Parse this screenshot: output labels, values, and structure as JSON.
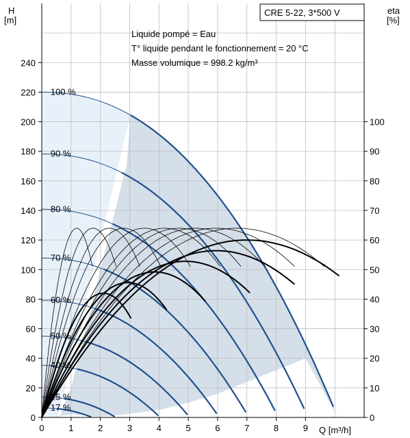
{
  "chart_data": {
    "type": "line",
    "title_box": "CRE 5-22, 3*500 V",
    "notes": [
      "Liquide pompé = Eau",
      "T° liquide pendant le fonctionnement = 20 °C",
      "Masse volumique = 998.2 kg/m³"
    ],
    "y_left_label": [
      "H",
      "[m]"
    ],
    "y_right_label": [
      "eta",
      "[%]"
    ],
    "x_label": "Q [m³/h]",
    "xlim": [
      0,
      11
    ],
    "ylim_left": [
      0,
      280
    ],
    "ylim_right": [
      0,
      140
    ],
    "x_ticks": [
      "0",
      "1",
      "2",
      "3",
      "4",
      "5",
      "6",
      "7",
      "8",
      "9"
    ],
    "y_left_ticks": [
      "0",
      "20",
      "40",
      "60",
      "80",
      "100",
      "120",
      "140",
      "160",
      "180",
      "200",
      "220",
      "240"
    ],
    "y_right_ticks": [
      "0",
      "10",
      "20",
      "30",
      "40",
      "50",
      "60",
      "70",
      "80",
      "90",
      "100"
    ],
    "speed_labels": [
      "100 %",
      "90 %",
      "80 %",
      "70 %",
      "60 %",
      "50 %",
      "40 %",
      "25 %",
      "17 %"
    ],
    "head_curves": [
      {
        "speed": 1.0,
        "label_index": 0,
        "h0": 220,
        "qmax": 10.1
      },
      {
        "speed": 0.9,
        "label_index": 1,
        "h0": 178.2,
        "qmax": 9.09
      },
      {
        "speed": 0.8,
        "label_index": 2,
        "h0": 140.8,
        "qmax": 8.08
      },
      {
        "speed": 0.7,
        "label_index": 3,
        "h0": 107.8,
        "qmax": 7.07
      },
      {
        "speed": 0.6,
        "label_index": 4,
        "h0": 79.2,
        "qmax": 6.06
      },
      {
        "speed": 0.5,
        "label_index": 5,
        "h0": 55,
        "qmax": 5.05
      },
      {
        "speed": 0.4,
        "label_index": 6,
        "h0": 35.2,
        "qmax": 4.04
      },
      {
        "speed": 0.25,
        "label_index": 7,
        "h0": 13.75,
        "qmax": 2.53
      },
      {
        "speed": 0.17,
        "label_index": 8,
        "h0": 6.4,
        "qmax": 1.72
      }
    ],
    "efficiency": {
      "peak": 60,
      "best_q": 7.0,
      "thin_curve_speeds": [
        0.17,
        0.25,
        0.33,
        0.4,
        0.5,
        0.6,
        0.67,
        0.75,
        0.85,
        0.95
      ]
    },
    "operating_region": {
      "q_min_fraction": 0.3,
      "head_line_switch_fraction": 0.3
    }
  },
  "colors": {
    "head_curve": "#1e4f8c",
    "region_fill": "#d5dfe9",
    "left_fill": "#e8f1fa",
    "grid": "#bdbdbd",
    "eff_curve": "#000000"
  }
}
